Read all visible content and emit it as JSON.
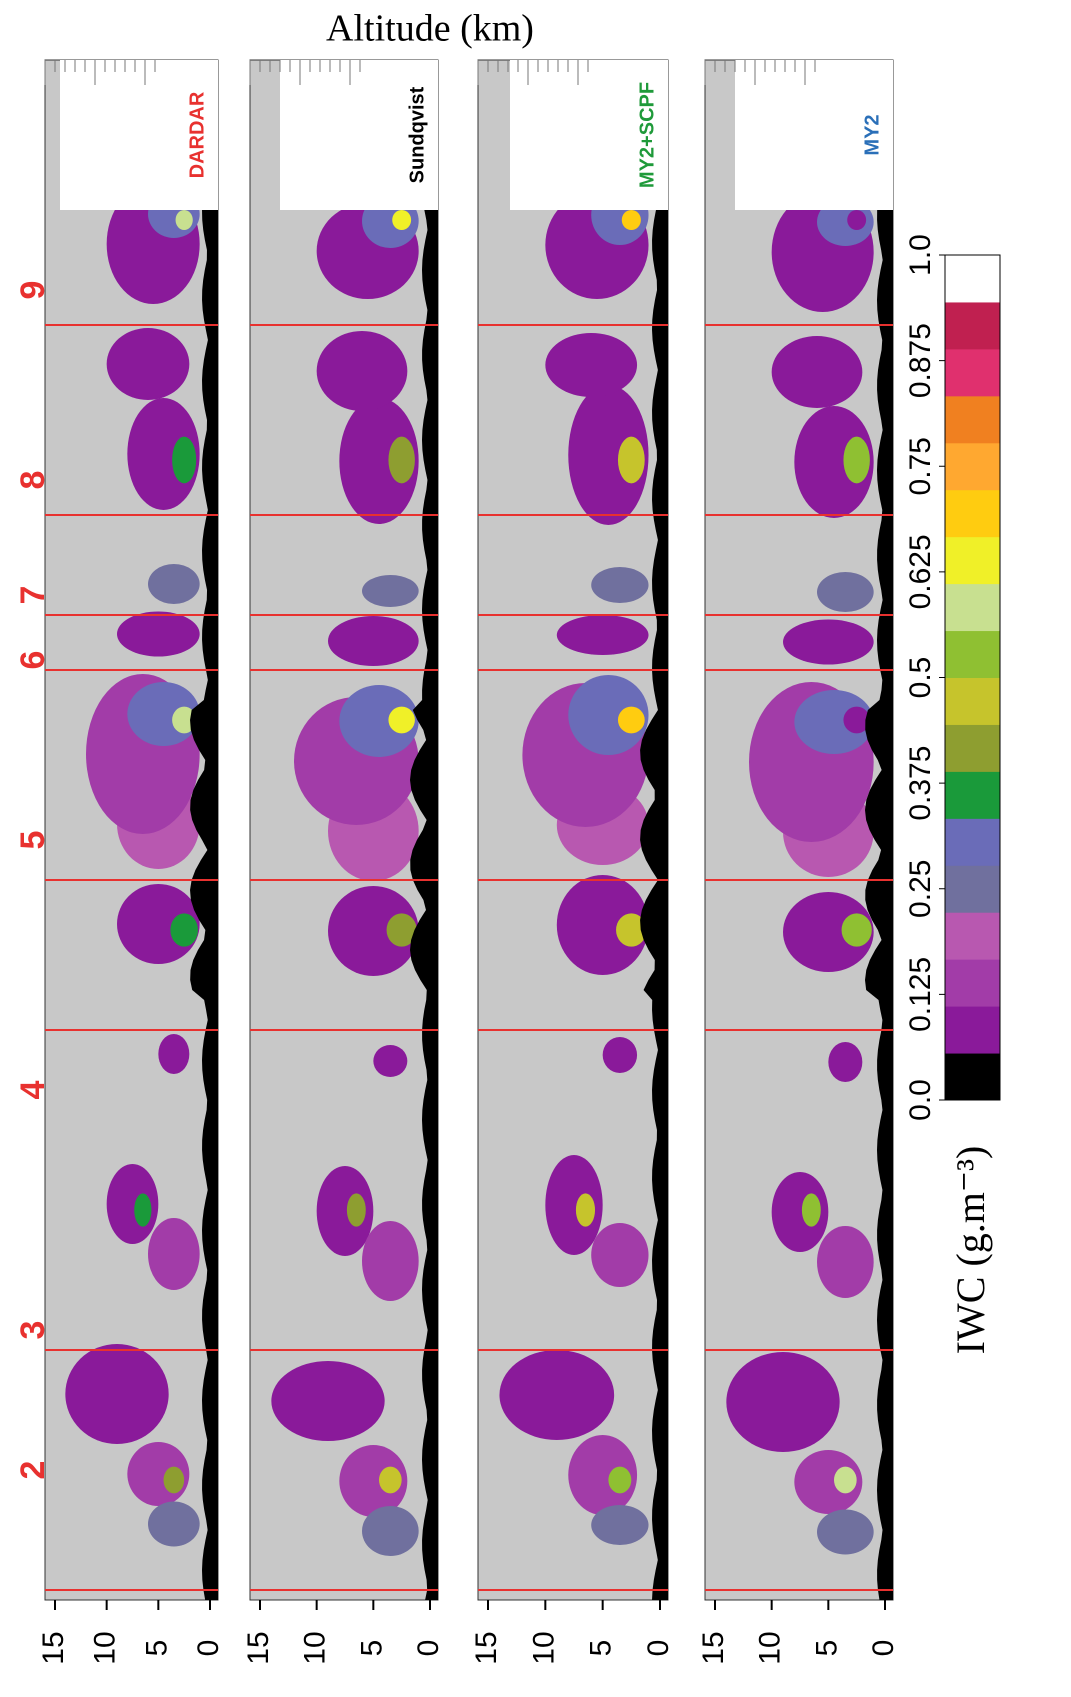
{
  "chart_data": {
    "type": "curtain",
    "title": "Altitude (km)",
    "panels": [
      {
        "label": "DARDAR",
        "color": "#e8312f"
      },
      {
        "label": "Sundqvist",
        "color": "#000000"
      },
      {
        "label": "MY2+SCPF",
        "color": "#1f9a3a"
      },
      {
        "label": "MY2",
        "color": "#2a6fb8"
      }
    ],
    "ylim": [
      0,
      15
    ],
    "yticks": [
      0,
      5,
      10,
      15
    ],
    "segments": [
      2,
      3,
      4,
      5,
      6,
      7,
      8,
      9
    ],
    "colorbar": {
      "label": "IWC (g.m⁻³)",
      "lim": [
        0,
        1
      ],
      "ticks": [
        {
          "value": 0,
          "label": "0.0"
        },
        0.125,
        0.25,
        0.375,
        0.5,
        0.625,
        0.75,
        0.875,
        {
          "value": 1,
          "label": "1.0"
        }
      ],
      "colors": [
        "#000000",
        "#8a1a9a",
        "#a23ca8",
        "#b858b0",
        "#70709e",
        "#6a6cb8",
        "#1a9a3a",
        "#8e9e30",
        "#c6c42c",
        "#8fc032",
        "#c8e090",
        "#f0f028",
        "#ffcc10",
        "#ffa830",
        "#f08020",
        "#e0306e",
        "#c02050",
        "#ffffff"
      ]
    }
  }
}
